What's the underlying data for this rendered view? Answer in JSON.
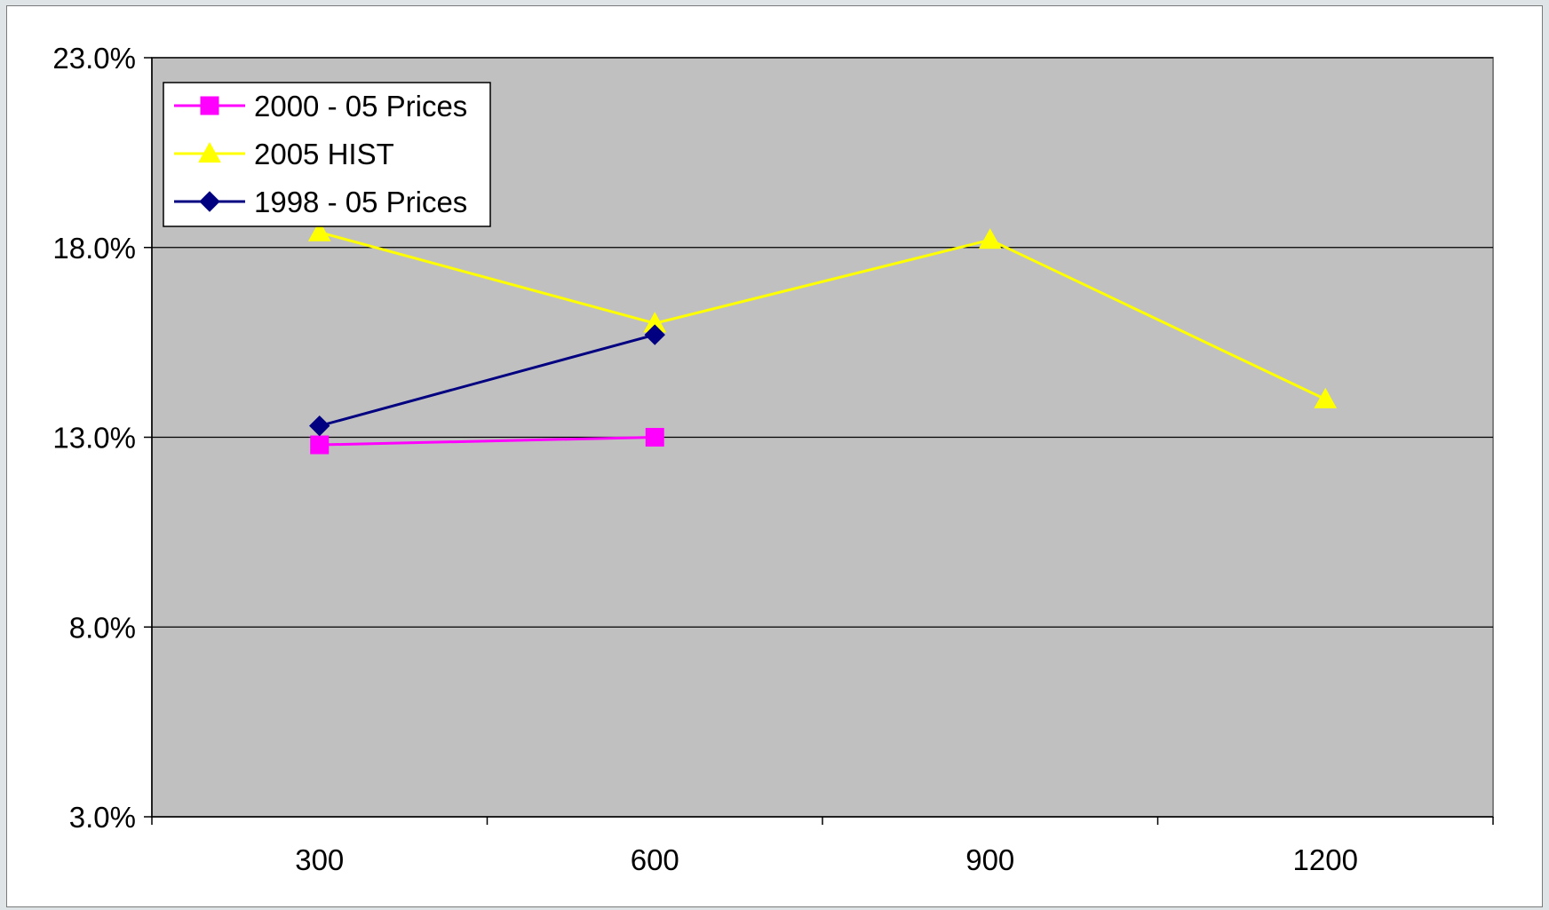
{
  "chart_data": {
    "type": "line",
    "title": "",
    "xlabel": "",
    "ylabel": "",
    "categories": [
      "300",
      "600",
      "900",
      "1200"
    ],
    "x": [
      300,
      600,
      900,
      1200
    ],
    "ylim": [
      0.03,
      0.23
    ],
    "yticks": [
      0.03,
      0.08,
      0.13,
      0.18,
      0.23
    ],
    "ytick_labels": [
      "3.0%",
      "8.0%",
      "13.0%",
      "18.0%",
      "23.0%"
    ],
    "grid": "horizontal",
    "legend_position": "top-left",
    "plot_background": "#c0c0c0",
    "series": [
      {
        "name": "2000 - 05 Prices",
        "color": "#ff00ff",
        "marker": "square",
        "values": [
          0.128,
          0.13,
          null,
          null
        ]
      },
      {
        "name": "2005 HIST",
        "color": "#ffff00",
        "marker": "triangle",
        "values": [
          0.184,
          0.16,
          0.182,
          0.14
        ]
      },
      {
        "name": "1998 - 05 Prices",
        "color": "#000080",
        "marker": "diamond",
        "values": [
          0.133,
          0.157,
          null,
          null
        ]
      }
    ]
  }
}
